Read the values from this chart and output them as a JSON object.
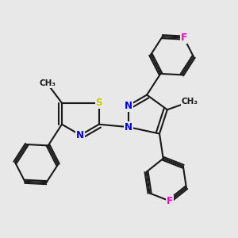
{
  "background_color": "#e8e8e8",
  "bond_color": "#1a1a1a",
  "bond_width": 1.5,
  "atom_colors": {
    "N": "#0000ee",
    "S": "#cccc00",
    "F": "#ff00cc",
    "C": "#1a1a1a"
  },
  "font_size": 8.5,
  "fig_size": [
    3.0,
    3.0
  ],
  "dpi": 100,
  "xlim": [
    -2.2,
    2.2
  ],
  "ylim": [
    -2.2,
    2.2
  ]
}
